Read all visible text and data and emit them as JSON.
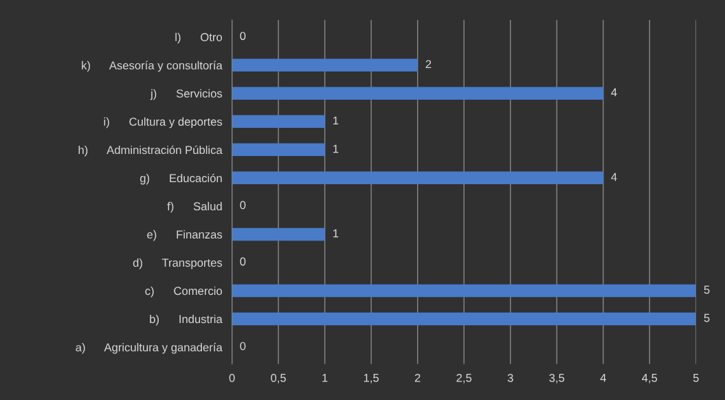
{
  "chart_data": {
    "type": "bar",
    "orientation": "horizontal",
    "categories": [
      "l)      Otro",
      "k)      Asesoría y consultoría",
      "j)      Servicios",
      "i)      Cultura y deportes",
      "h)      Administración Pública",
      "g)      Educación",
      "f)      Salud",
      "e)      Finanzas",
      "d)      Transportes",
      "c)      Comercio",
      "b)      Industria",
      "a)      Agricultura y ganadería"
    ],
    "values": [
      0,
      2,
      4,
      1,
      1,
      4,
      0,
      1,
      0,
      5,
      5,
      0
    ],
    "color": "#4a7bc8",
    "xlim": [
      0,
      5
    ],
    "xticks": [
      0,
      {
        "value": 0.5,
        "label": "0,5"
      },
      1,
      {
        "value": 1.5,
        "label": "1,5"
      },
      2,
      {
        "value": 2.5,
        "label": "2,5"
      },
      3,
      {
        "value": 3.5,
        "label": "3,5"
      },
      4,
      {
        "value": 4.5,
        "label": "4,5"
      },
      5
    ],
    "grid": "x",
    "data_labels": true,
    "legend": false
  }
}
